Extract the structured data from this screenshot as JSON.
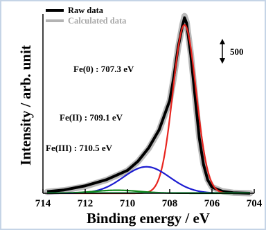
{
  "chart_data": {
    "type": "line",
    "xlabel": "Binding energy / eV",
    "ylabel": "Intensity / arb. unit",
    "xlim": [
      714,
      704
    ],
    "xaxis_reversed": true,
    "x_ticks": [
      "714",
      "712",
      "710",
      "708",
      "706",
      "704"
    ],
    "ylim": [
      0,
      3250
    ],
    "y_ticks_shown": false,
    "grid": false,
    "legend_placement": "top-left",
    "colors": {
      "raw": "#000000",
      "calculated": "#b3b3b3",
      "fe0": "#e8251f",
      "fe2": "#1b1bd1",
      "fe3": "#12871a"
    },
    "series": [
      {
        "name": "Raw data",
        "x": [
          713.8,
          713.0,
          712.0,
          711.0,
          710.0,
          709.5,
          709.0,
          708.5,
          708.0,
          707.8,
          707.6,
          707.4,
          707.3,
          707.2,
          707.0,
          706.8,
          706.6,
          706.4,
          706.2,
          706.0,
          705.5,
          705.0,
          704.2
        ],
        "y": [
          30,
          60,
          135,
          245,
          415,
          580,
          820,
          1150,
          1680,
          2120,
          2650,
          3030,
          3180,
          3080,
          2500,
          1750,
          1000,
          520,
          240,
          110,
          35,
          10,
          0
        ]
      },
      {
        "name": "Calculated data",
        "x": [
          713.8,
          713.0,
          712.0,
          711.0,
          710.0,
          709.5,
          709.0,
          708.5,
          708.0,
          707.8,
          707.6,
          707.4,
          707.3,
          707.2,
          707.0,
          706.8,
          706.6,
          706.4,
          706.2,
          706.0,
          705.5,
          705.0,
          704.2
        ],
        "y": [
          25,
          55,
          125,
          240,
          410,
          575,
          810,
          1140,
          1670,
          2110,
          2640,
          3050,
          3210,
          3100,
          2520,
          1760,
          1010,
          525,
          245,
          112,
          36,
          10,
          0
        ]
      }
    ],
    "components": [
      {
        "name": "Fe(0)",
        "center": 707.3,
        "height": 3050,
        "width": 0.55,
        "label": "Fe(0) : 707.3 eV"
      },
      {
        "name": "Fe(II)",
        "center": 709.1,
        "height": 480,
        "width": 1.1,
        "label": "Fe(II) : 709.1 eV"
      },
      {
        "name": "Fe(III)",
        "center": 710.5,
        "height": 55,
        "width": 1.1,
        "label": "Fe(III) : 710.5 eV"
      }
    ],
    "scale_bar": {
      "label": "500",
      "value": 500
    }
  }
}
